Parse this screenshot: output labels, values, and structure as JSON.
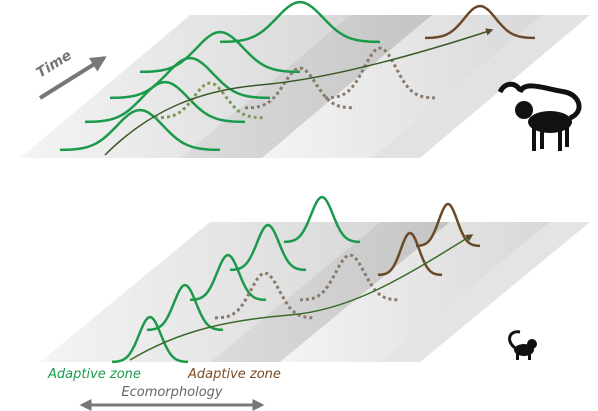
{
  "labels": {
    "time": "Time",
    "zones": [
      "Adaptive zone",
      "Adaptive zone"
    ],
    "axis": "Ecomorphology"
  }
}
